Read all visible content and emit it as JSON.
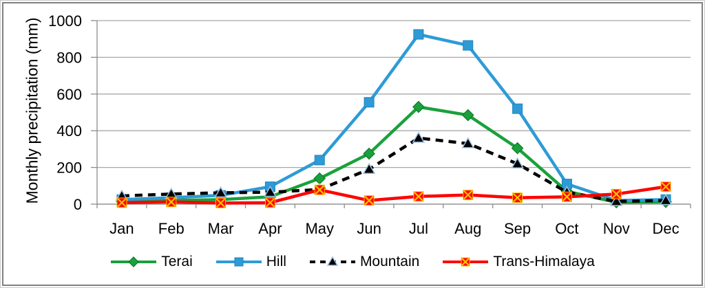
{
  "chart_data": {
    "type": "line",
    "title": "",
    "xlabel": "",
    "ylabel": "Monthly precipitation (mm)",
    "ylim": [
      0,
      1000
    ],
    "yticks": [
      0,
      200,
      400,
      600,
      800,
      1000
    ],
    "grid": true,
    "legend_position": "bottom",
    "categories": [
      "Jan",
      "Feb",
      "Mar",
      "Apr",
      "May",
      "Jun",
      "Jul",
      "Aug",
      "Sep",
      "Oct",
      "Nov",
      "Dec"
    ],
    "series": [
      {
        "name": "Terai",
        "color": "#1AA13B",
        "marker": "diamond",
        "marker_stroke": "#0E7A2B",
        "line_style": "solid",
        "values": [
          15,
          20,
          25,
          40,
          140,
          275,
          530,
          485,
          305,
          70,
          10,
          12
        ]
      },
      {
        "name": "Hill",
        "color": "#2E9BD6",
        "marker": "square",
        "marker_stroke": "#1E83BC",
        "line_style": "solid",
        "values": [
          25,
          35,
          48,
          95,
          240,
          555,
          925,
          865,
          520,
          110,
          20,
          25
        ]
      },
      {
        "name": "Mountain",
        "color": "#000000",
        "marker": "triangle",
        "marker_stroke": "#9DC3E6",
        "line_style": "dashed",
        "values": [
          45,
          55,
          62,
          65,
          80,
          190,
          360,
          330,
          220,
          65,
          15,
          20
        ]
      },
      {
        "name": "Trans-Himalaya",
        "color": "#FE0000",
        "marker": "x-square",
        "marker_stroke": "#FFC000",
        "line_style": "solid",
        "values": [
          8,
          12,
          6,
          8,
          78,
          20,
          42,
          50,
          35,
          40,
          55,
          95
        ]
      }
    ],
    "styles": {
      "axis_color": "#8C8C8C",
      "grid_color": "#A8A8A8",
      "text_color": "#000000",
      "frame_border": "#7F7F7F"
    }
  }
}
